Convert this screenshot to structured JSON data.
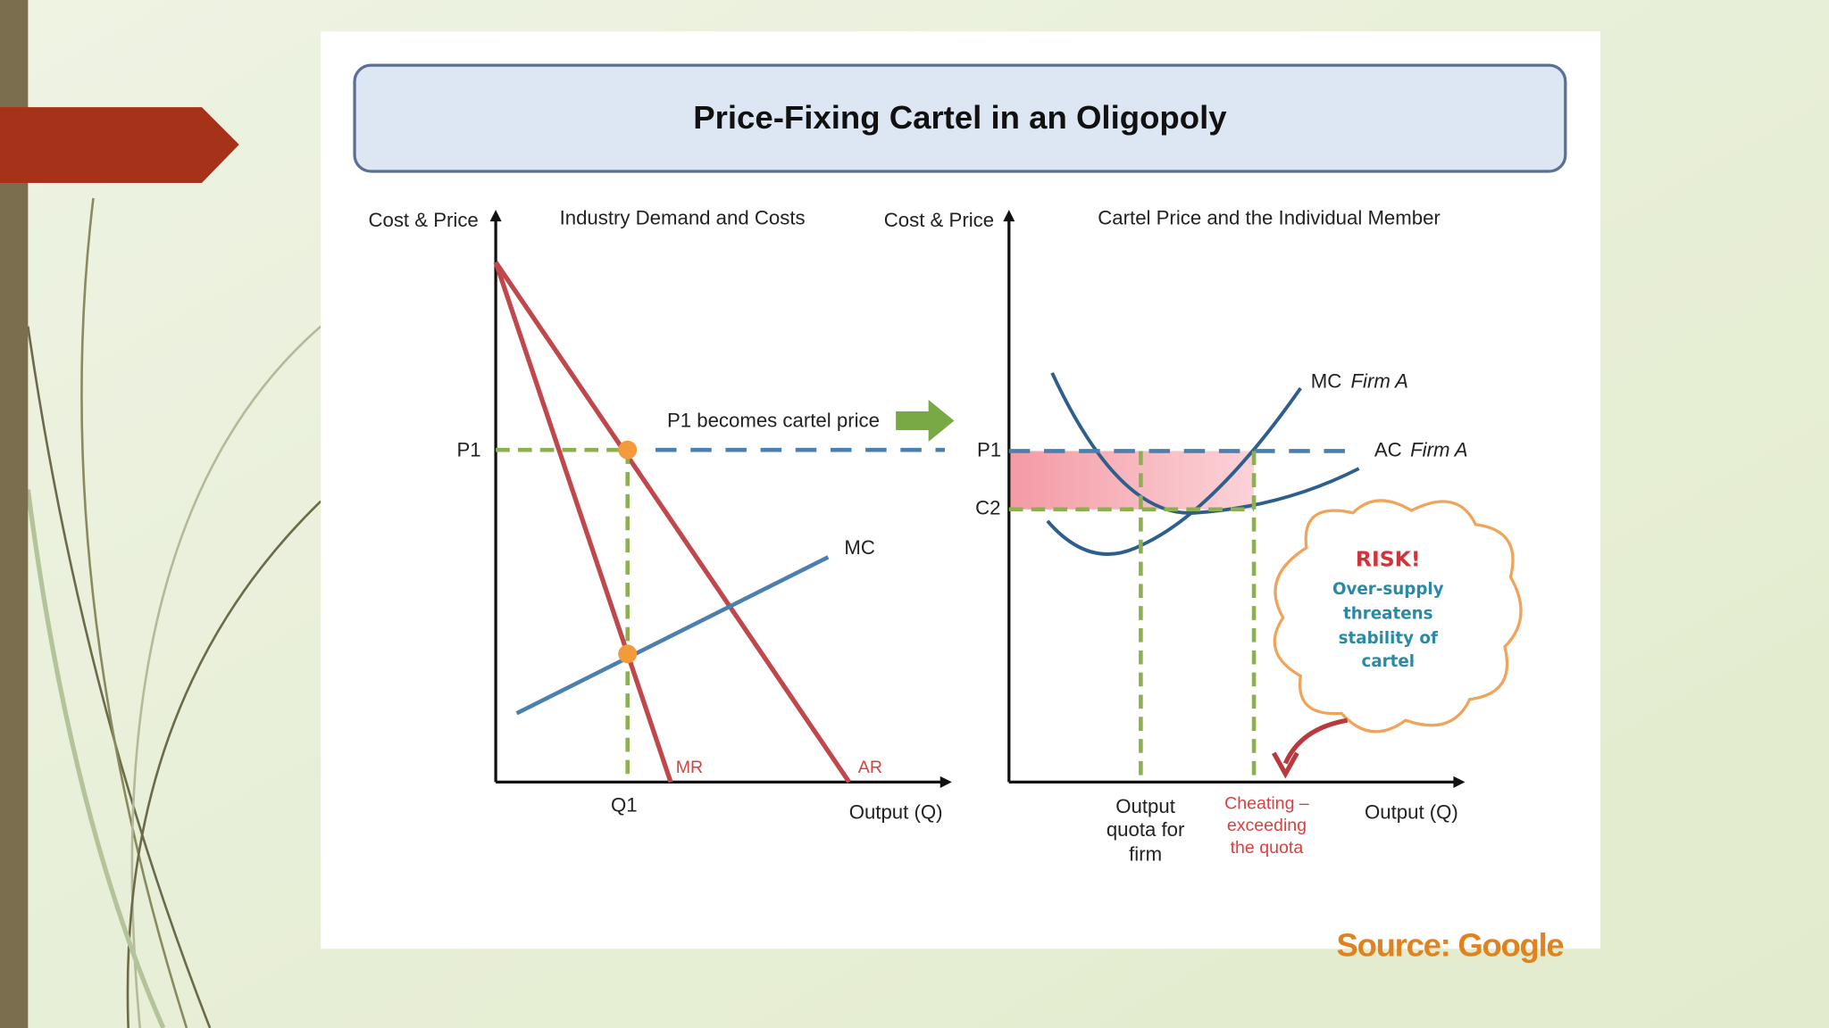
{
  "title": "Price-Fixing Cartel in an Oligopoly",
  "left_chart": {
    "y_axis_label": "Cost & Price",
    "subtitle": "Industry Demand and Costs",
    "p1_label": "P1",
    "q1_label": "Q1",
    "mr_label": "MR",
    "ar_label": "AR",
    "mc_label": "MC",
    "x_axis_label": "Output (Q)",
    "annotation": "P1 becomes cartel price"
  },
  "right_chart": {
    "y_axis_label": "Cost & Price",
    "subtitle": "Cartel Price and the Individual Member",
    "p1_label": "P1",
    "c2_label": "C2",
    "mc_label": "MC",
    "mc_firm": "Firm A",
    "ac_label": "AC",
    "ac_firm": "Firm A",
    "x_axis_label": "Output (Q)",
    "quota_label": [
      "Output",
      "quota for",
      "firm"
    ],
    "cheating_label": [
      "Cheating –",
      "exceeding",
      "the quota"
    ]
  },
  "risk_note": {
    "heading": "RISK!",
    "lines": [
      "Over-supply",
      "threatens",
      "stability of",
      "cartel"
    ]
  },
  "source": "Source: Google"
}
